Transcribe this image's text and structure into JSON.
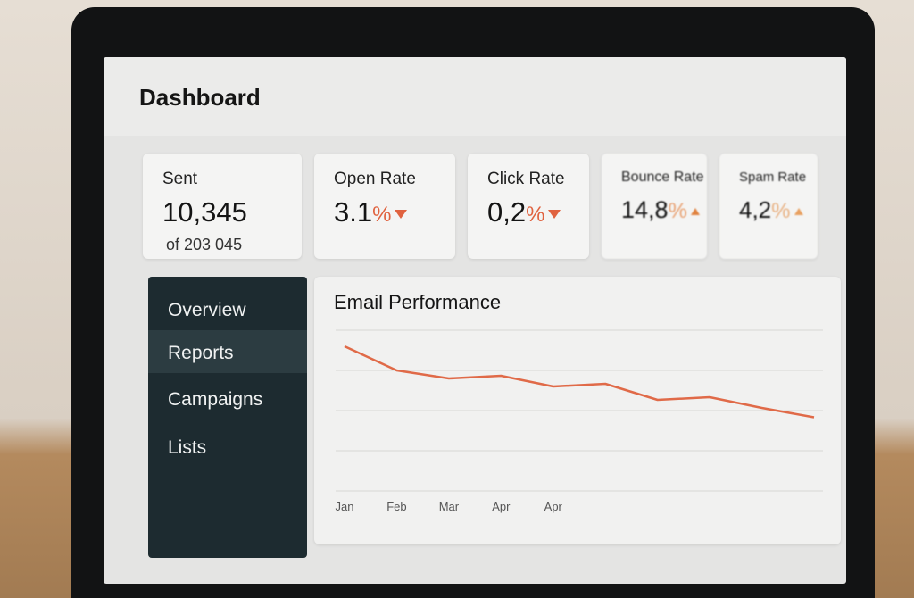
{
  "header": {
    "title": "Dashboard"
  },
  "cards": [
    {
      "label": "Sent",
      "value": "10,345",
      "sub": "of 203 045"
    },
    {
      "label": "Open Rate",
      "value": "3.1",
      "unit": "%"
    },
    {
      "label": "Click Rate",
      "value": "0,2",
      "unit": "%"
    },
    {
      "label": "Bounce Rate",
      "value": "14,8",
      "unit": "%"
    },
    {
      "label": "Spam Rate",
      "value": "4,2",
      "unit": "%"
    }
  ],
  "nav": [
    "Overview",
    "Reports",
    "Campaigns",
    "Lists"
  ],
  "chart_data": {
    "type": "line",
    "title": "Email Performance",
    "categories": [
      "Jan",
      "Feb",
      "Mar",
      "Apr",
      "Apr",
      null,
      null,
      null,
      null,
      null
    ],
    "values": [
      88,
      70,
      64,
      66,
      58,
      60,
      48,
      50,
      42,
      35
    ],
    "color": "#e06a48",
    "ylim": [
      0,
      100
    ]
  }
}
